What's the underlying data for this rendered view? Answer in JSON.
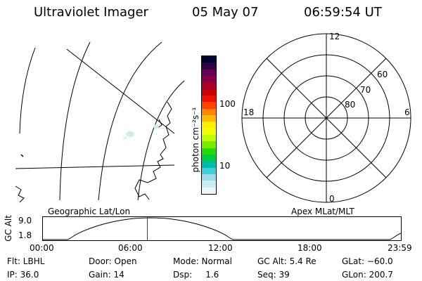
{
  "header": {
    "instrument": "Ultraviolet Imager",
    "date": "05 May 07",
    "time": "06:59:54 UT"
  },
  "left_panel": {
    "label": "Geographic Lat/Lon"
  },
  "right_panel": {
    "label": "Apex MLat/MLT",
    "mlt_labels": {
      "top": "12",
      "left": "18",
      "right": "6",
      "bottom": "0"
    },
    "lat_labels": [
      "60",
      "70",
      "80"
    ]
  },
  "colorbar": {
    "unit_label": "photon cm⁻²s⁻¹",
    "tick_100": "100",
    "tick_10": "10",
    "colors": [
      "#000033",
      "#330044",
      "#660055",
      "#880044",
      "#aa0022",
      "#cc0000",
      "#ee1100",
      "#ff4400",
      "#ff8800",
      "#ffbb00",
      "#ffee00",
      "#eeff00",
      "#bbff00",
      "#77ee00",
      "#22dd00",
      "#00cc44",
      "#00bbaa",
      "#44ccdd",
      "#99dde8",
      "#ccecf0",
      "#eef6f8"
    ]
  },
  "altitude_plot": {
    "ylabel": "GC Alt",
    "y_ticks": [
      "9.0",
      "1.8"
    ],
    "x_ticks": [
      "00:00",
      "06:00",
      "12:00",
      "18:00",
      "23:59"
    ],
    "current_time_hours": 7.0,
    "marker_color": "#cc0000"
  },
  "info": {
    "flt": "Flt: LBHL",
    "ip": "IP: 36.0",
    "door": "Door: Open",
    "gain": "Gain: 14",
    "mode": "Mode: Normal",
    "dsp": "Dsp:     1.6",
    "gc_alt": "GC Alt: 5.4 Re",
    "seq": "Seq: 39",
    "glat": "GLat: −60.0",
    "glon": "GLon: 200.7"
  }
}
